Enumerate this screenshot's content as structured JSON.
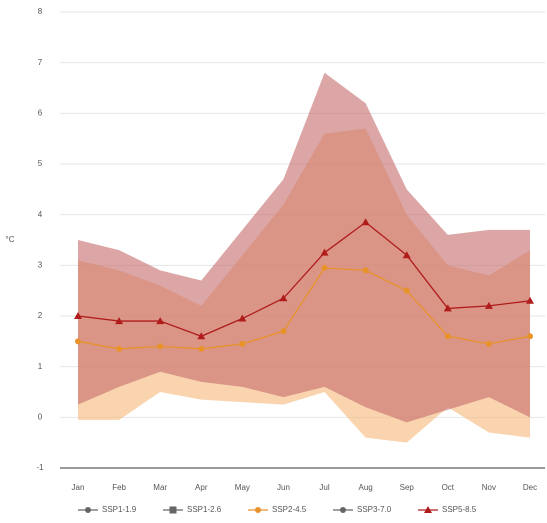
{
  "chart_data": {
    "type": "band-line",
    "y_label": "°C",
    "categories": [
      "Jan",
      "Feb",
      "Mar",
      "Apr",
      "May",
      "Jun",
      "Jul",
      "Aug",
      "Sep",
      "Oct",
      "Nov",
      "Dec"
    ],
    "ylim": [
      -1,
      8
    ],
    "yticks": [
      -1,
      0,
      1,
      2,
      3,
      4,
      5,
      6,
      7,
      8
    ],
    "grid": true,
    "series": [
      {
        "name": "SSP1-1.9",
        "color": "#666666",
        "marker": "circle",
        "visible": false
      },
      {
        "name": "SSP1-2.6",
        "color": "#666666",
        "marker": "square",
        "visible": false
      },
      {
        "name": "SSP2-4.5",
        "color": "#e8922a",
        "band_color": "#f5b878",
        "marker": "circle",
        "visible": true,
        "values": [
          1.5,
          1.35,
          1.4,
          1.35,
          1.45,
          1.7,
          2.95,
          2.9,
          2.5,
          1.6,
          1.45,
          1.6
        ],
        "upper": [
          3.1,
          2.9,
          2.6,
          2.2,
          3.2,
          4.2,
          5.6,
          5.7,
          4.0,
          3.0,
          2.8,
          3.3
        ],
        "lower": [
          -0.05,
          -0.05,
          0.5,
          0.35,
          0.3,
          0.25,
          0.5,
          -0.4,
          -0.5,
          0.2,
          -0.3,
          -0.4
        ]
      },
      {
        "name": "SSP3-7.0",
        "color": "#666666",
        "marker": "circle",
        "visible": false
      },
      {
        "name": "SSP5-8.5",
        "color": "#b01c1c",
        "band_color": "#c46a6a",
        "marker": "triangle",
        "visible": true,
        "values": [
          2.0,
          1.9,
          1.9,
          1.6,
          1.95,
          2.35,
          3.25,
          3.85,
          3.2,
          2.15,
          2.2,
          2.3
        ],
        "upper": [
          3.5,
          3.3,
          2.9,
          2.7,
          3.7,
          4.7,
          6.8,
          6.2,
          4.5,
          3.6,
          3.7,
          3.7
        ],
        "lower": [
          0.25,
          0.6,
          0.9,
          0.7,
          0.6,
          0.4,
          0.6,
          0.2,
          -0.1,
          0.15,
          0.4,
          0.0
        ]
      }
    ]
  }
}
